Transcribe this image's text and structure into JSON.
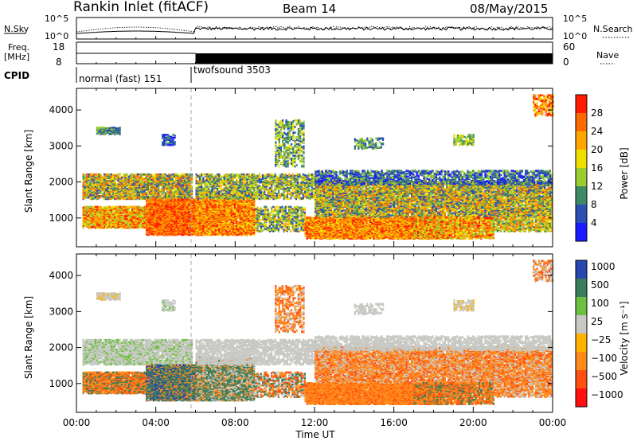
{
  "header": {
    "title": "Rankin Inlet (fitACF)",
    "beam": "Beam 14",
    "date": "08/May/2015"
  },
  "top_panels": {
    "nsky_label": "N.Sky",
    "nsky_ticks": [
      "10^5",
      "10^0"
    ],
    "nsearch_label": "N.Search",
    "nsearch_ticks": [
      "10^5",
      "10^0"
    ],
    "freq_label_1": "Freq.",
    "freq_label_2": "[MHz]",
    "freq_ticks": [
      "18",
      "8"
    ],
    "nave_label": "Nave",
    "nave_ticks": [
      "60",
      "0"
    ],
    "cpid_label": "CPID",
    "cpid_segments": [
      {
        "name": "normal (fast) 151",
        "start_hour": 0,
        "end_hour": 6
      },
      {
        "name": "twofsound 3503",
        "start_hour": 6,
        "end_hour": 24
      }
    ]
  },
  "chart_data": [
    {
      "type": "heatmap",
      "name": "power",
      "ylabel": "Slant Range [km]",
      "xlabel": "",
      "xlim": [
        0,
        24
      ],
      "ylim": [
        200,
        4600
      ],
      "yticks": [
        "1000",
        "2000",
        "3000",
        "4000"
      ],
      "colorbar_label": "Power [dB]",
      "colorbar_ticks": [
        "4",
        "8",
        "12",
        "16",
        "20",
        "24",
        "28"
      ],
      "colors": [
        "#1a1aff",
        "#2b4fb3",
        "#3f8a66",
        "#9acd32",
        "#f0e000",
        "#ffa500",
        "#ff6a00",
        "#ff1a00"
      ]
    },
    {
      "type": "heatmap",
      "name": "velocity",
      "ylabel": "Slant Range [km]",
      "xlabel": "Time UT",
      "xlim": [
        0,
        24
      ],
      "ylim": [
        200,
        4600
      ],
      "yticks": [
        "1000",
        "2000",
        "3000",
        "4000"
      ],
      "xticks": [
        "00:00",
        "04:00",
        "08:00",
        "12:00",
        "16:00",
        "20:00",
        "00:00"
      ],
      "colorbar_label": "Velocity [m s⁻¹]",
      "colorbar_ticks": [
        "1000",
        "500",
        "100",
        "25",
        "−25",
        "−100",
        "−500",
        "−1000"
      ],
      "colors": [
        "#2646b0",
        "#3a7d5b",
        "#6cc23e",
        "#c8c8c4",
        "#ffb200",
        "#ff8a1a",
        "#ff5010",
        "#ff1010"
      ]
    }
  ]
}
